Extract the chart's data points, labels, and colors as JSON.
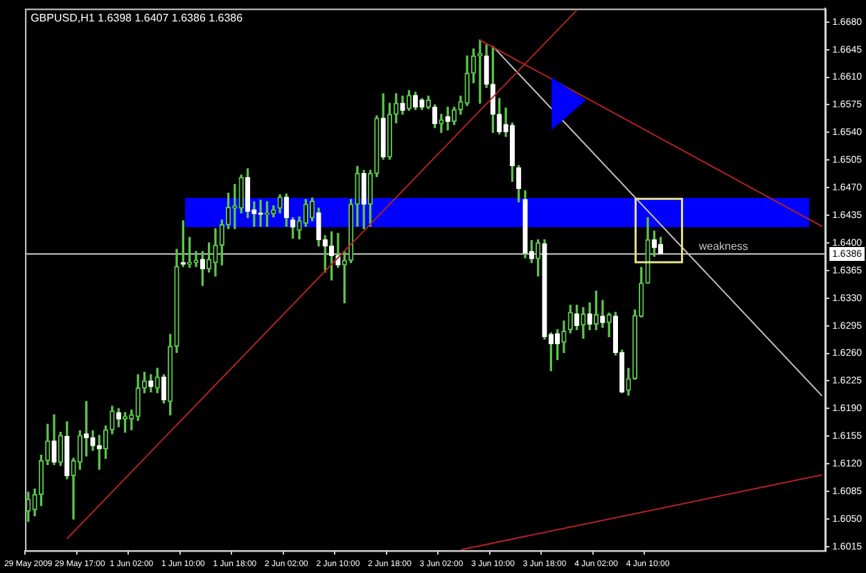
{
  "chart_data": {
    "type": "candlestick",
    "title": "GBPUSD,H1 1.6398 1.6407 1.6386 1.6386",
    "color": "#5cc44c",
    "colors": [
      "#5cc44c",
      "#5cc44c",
      "#5cc44c",
      "#5cc44c",
      "#ffffff",
      "#5cc44c",
      "#ffffff",
      "#5cc44c",
      "#5cc44c",
      "#ffffff",
      "#ffffff",
      "#ffffff",
      "#5cc44c",
      "#5cc44c",
      "#ffffff",
      "#5cc44c",
      "#5cc44c",
      "#5cc44c",
      "#5cc44c",
      "#ffffff",
      "#5cc44c",
      "#ffffff",
      "#5cc44c",
      "#5cc44c",
      "#ffffff",
      "#5cc44c",
      "#5cc44c",
      "#ffffff",
      "#5cc44c",
      "#5cc44c",
      "#5cc44c",
      "#5cc44c",
      "#5cc44c",
      "#5cc44c",
      "#ffffff",
      "#ffffff",
      "#ffffff",
      "#5cc44c",
      "#5cc44c",
      "#5cc44c",
      "#ffffff",
      "#ffffff",
      "#5cc44c",
      "#5cc44c",
      "#5cc44c",
      "#ffffff",
      "#ffffff",
      "#ffffff",
      "#ffffff",
      "#5cc44c",
      "#5cc44c",
      "#5cc44c",
      "#ffffff",
      "#5cc44c",
      "#5cc44c",
      "#ffffff",
      "#5cc44c",
      "#5cc44c",
      "#ffffff",
      "#5cc44c",
      "#ffffff",
      "#ffffff",
      "#5cc44c",
      "#ffffff",
      "#5cc44c",
      "#ffffff",
      "#5cc44c",
      "#5cc44c",
      "#5cc44c",
      "#5cc44c",
      "#5cc44c",
      "#ffffff",
      "#ffffff",
      "#ffffff",
      "#ffffff",
      "#ffffff",
      "#ffffff",
      "#ffffff",
      "#ffffff",
      "#5cc44c",
      "#ffffff",
      "#ffffff",
      "#ffffff",
      "#5cc44c",
      "#5cc44c",
      "#ffffff",
      "#5cc44c",
      "#ffffff",
      "#5cc44c",
      "#ffffff",
      "#5cc44c",
      "#ffffff",
      "#ffffff",
      "#5cc44c",
      "#5cc44c",
      "#5cc44c",
      "#5cc44c",
      "#ffffff",
      "#ffffff",
      null,
      null,
      null,
      null,
      null,
      null,
      null,
      null,
      null,
      null,
      null,
      null,
      null,
      null,
      null,
      null,
      null,
      null,
      null,
      null,
      null,
      null,
      null,
      null,
      null
    ],
    "categories": [
      "29 May 2009",
      null,
      null,
      null,
      null,
      null,
      null,
      null,
      "29 May 17:00",
      null,
      null,
      null,
      null,
      null,
      null,
      null,
      "1 Jun 02:00",
      null,
      null,
      null,
      null,
      null,
      null,
      null,
      "1 Jun 10:00",
      null,
      null,
      null,
      null,
      null,
      null,
      null,
      "1 Jun 18:00",
      null,
      null,
      null,
      null,
      null,
      null,
      null,
      "2 Jun 02:00",
      null,
      null,
      null,
      null,
      null,
      null,
      null,
      "2 Jun 10:00",
      null,
      null,
      null,
      null,
      null,
      null,
      null,
      "2 Jun 18:00",
      null,
      null,
      null,
      null,
      null,
      null,
      null,
      "3 Jun 02:00",
      null,
      null,
      null,
      null,
      null,
      null,
      null,
      "3 Jun 10:00",
      null,
      null,
      null,
      null,
      null,
      null,
      null,
      "3 Jun 18:00",
      null,
      null,
      null,
      null,
      null,
      null,
      null,
      "4 Jun 02:00",
      null,
      null,
      null,
      null,
      null,
      null,
      null,
      "4 Jun 10:00",
      null,
      null,
      null,
      null,
      null,
      null,
      null,
      null,
      null,
      null,
      null,
      null,
      null,
      null,
      null,
      null,
      null,
      null,
      null,
      null,
      null,
      null,
      null,
      null,
      null,
      null,
      null
    ],
    "ohlc": [
      [
        1.606,
        1.6084,
        1.6047,
        1.6075
      ],
      [
        1.6062,
        1.6088,
        1.6054,
        1.6081
      ],
      [
        1.6081,
        1.6131,
        1.6067,
        1.6124
      ],
      [
        1.6124,
        1.617,
        1.6119,
        1.6149
      ],
      [
        1.6149,
        1.6182,
        1.6119,
        1.6122
      ],
      [
        1.6122,
        1.616,
        1.6118,
        1.6156
      ],
      [
        1.6155,
        1.6173,
        1.6101,
        1.6105
      ],
      [
        1.6105,
        1.6127,
        1.605,
        1.6124
      ],
      [
        1.6122,
        1.6162,
        1.6113,
        1.6156
      ],
      [
        1.6158,
        1.6199,
        1.613,
        1.6153
      ],
      [
        1.6153,
        1.6162,
        1.6137,
        1.6143
      ],
      [
        1.6143,
        1.6156,
        1.6113,
        1.6139
      ],
      [
        1.6139,
        1.6168,
        1.6127,
        1.6163
      ],
      [
        1.6163,
        1.6193,
        1.6158,
        1.6187
      ],
      [
        1.6185,
        1.619,
        1.6167,
        1.6177
      ],
      [
        1.6177,
        1.6185,
        1.616,
        1.618
      ],
      [
        1.6177,
        1.6188,
        1.6163,
        1.6182
      ],
      [
        1.618,
        1.6233,
        1.6175,
        1.6216
      ],
      [
        1.6216,
        1.6236,
        1.621,
        1.6225
      ],
      [
        1.6225,
        1.6233,
        1.6211,
        1.6218
      ],
      [
        1.6216,
        1.6241,
        1.621,
        1.623
      ],
      [
        1.623,
        1.6233,
        1.6197,
        1.6201
      ],
      [
        1.6199,
        1.6284,
        1.6182,
        1.6269
      ],
      [
        1.6269,
        1.6392,
        1.6261,
        1.637
      ],
      [
        1.6374,
        1.6428,
        1.637,
        1.6373
      ],
      [
        1.6373,
        1.6407,
        1.6369,
        1.6375
      ],
      [
        1.6375,
        1.6389,
        1.637,
        1.6378
      ],
      [
        1.6379,
        1.6389,
        1.6346,
        1.6367
      ],
      [
        1.6367,
        1.64,
        1.6363,
        1.6379
      ],
      [
        1.6375,
        1.6418,
        1.6358,
        1.6397
      ],
      [
        1.6397,
        1.6429,
        1.6372,
        1.6423
      ],
      [
        1.6423,
        1.6463,
        1.6418,
        1.6445
      ],
      [
        1.6444,
        1.6474,
        1.6418,
        1.6447
      ],
      [
        1.6444,
        1.6486,
        1.6438,
        1.6483
      ],
      [
        1.6483,
        1.6494,
        1.6432,
        1.644
      ],
      [
        1.6442,
        1.6452,
        1.6421,
        1.6437
      ],
      [
        1.6437,
        1.6454,
        1.6421,
        1.6436
      ],
      [
        1.6436,
        1.6452,
        1.6421,
        1.6437
      ],
      [
        1.6437,
        1.6447,
        1.6433,
        1.6442
      ],
      [
        1.6444,
        1.6461,
        1.6438,
        1.6458
      ],
      [
        1.6458,
        1.6462,
        1.6421,
        1.6432
      ],
      [
        1.6429,
        1.6432,
        1.6406,
        1.642
      ],
      [
        1.6416,
        1.6433,
        1.6405,
        1.6428
      ],
      [
        1.6425,
        1.6455,
        1.6421,
        1.6449
      ],
      [
        1.6432,
        1.6457,
        1.6428,
        1.6453
      ],
      [
        1.6438,
        1.6444,
        1.6396,
        1.6404
      ],
      [
        1.6404,
        1.6409,
        1.6363,
        1.6396
      ],
      [
        1.6396,
        1.6414,
        1.6353,
        1.6384
      ],
      [
        1.6384,
        1.6412,
        1.6369,
        1.6372
      ],
      [
        1.6372,
        1.6389,
        1.6324,
        1.6378
      ],
      [
        1.6378,
        1.6455,
        1.6375,
        1.6449
      ],
      [
        1.6449,
        1.6497,
        1.6421,
        1.6488
      ],
      [
        1.6488,
        1.6492,
        1.6418,
        1.6449
      ],
      [
        1.6449,
        1.6492,
        1.6421,
        1.6488
      ],
      [
        1.6488,
        1.6561,
        1.6484,
        1.6558
      ],
      [
        1.6558,
        1.6589,
        1.6506,
        1.6509
      ],
      [
        1.6509,
        1.6577,
        1.6506,
        1.6563
      ],
      [
        1.6563,
        1.6589,
        1.6552,
        1.6577
      ],
      [
        1.6577,
        1.6586,
        1.6563,
        1.6568
      ],
      [
        1.657,
        1.6593,
        1.6568,
        1.6587
      ],
      [
        1.6587,
        1.6591,
        1.6569,
        1.6572
      ],
      [
        1.6581,
        1.6583,
        1.6569,
        1.6572
      ],
      [
        1.6572,
        1.6586,
        1.657,
        1.6581
      ],
      [
        1.6572,
        1.6575,
        1.6546,
        1.6551
      ],
      [
        1.6551,
        1.6563,
        1.654,
        1.6556
      ],
      [
        1.656,
        1.6572,
        1.6543,
        1.6554
      ],
      [
        1.6554,
        1.6572,
        1.655,
        1.6569
      ],
      [
        1.6569,
        1.6586,
        1.6563,
        1.6579
      ],
      [
        1.6577,
        1.6637,
        1.6574,
        1.6615
      ],
      [
        1.6615,
        1.6646,
        1.6603,
        1.6637
      ],
      [
        1.6637,
        1.6657,
        1.6577,
        1.664
      ],
      [
        1.6637,
        1.6651,
        1.6597,
        1.6601
      ],
      [
        1.6601,
        1.6649,
        1.654,
        1.6563
      ],
      [
        1.6563,
        1.6583,
        1.6538,
        1.6541
      ],
      [
        1.655,
        1.6571,
        1.6535,
        1.6541
      ],
      [
        1.6549,
        1.6552,
        1.6478,
        1.6498
      ],
      [
        1.6495,
        1.6498,
        1.6452,
        1.6469
      ],
      [
        1.6455,
        1.6466,
        1.6381,
        1.6387
      ],
      [
        1.6389,
        1.6403,
        1.6375,
        1.638
      ],
      [
        1.638,
        1.6404,
        1.6358,
        1.64
      ],
      [
        1.6399,
        1.6404,
        1.6278,
        1.6281
      ],
      [
        1.6284,
        1.6286,
        1.6238,
        1.6272
      ],
      [
        1.6285,
        1.629,
        1.6252,
        1.6272
      ],
      [
        1.6274,
        1.6301,
        1.6261,
        1.6288
      ],
      [
        1.629,
        1.6321,
        1.6286,
        1.6312
      ],
      [
        1.631,
        1.6321,
        1.629,
        1.6295
      ],
      [
        1.6296,
        1.6318,
        1.6279,
        1.631
      ],
      [
        1.631,
        1.6324,
        1.629,
        1.6297
      ],
      [
        1.6297,
        1.6339,
        1.629,
        1.6309
      ],
      [
        1.6307,
        1.6327,
        1.6293,
        1.6299
      ],
      [
        1.6299,
        1.6311,
        1.6281,
        1.6309
      ],
      [
        1.6307,
        1.6312,
        1.6258,
        1.6261
      ],
      [
        1.6261,
        1.6264,
        1.621,
        1.6211
      ],
      [
        1.6213,
        1.6241,
        1.6207,
        1.6228
      ],
      [
        1.6228,
        1.6315,
        1.6227,
        1.6308
      ],
      [
        1.6307,
        1.6369,
        1.6306,
        1.6349
      ],
      [
        1.6349,
        1.6432,
        1.6349,
        1.6404
      ],
      [
        1.6404,
        1.6415,
        1.6383,
        1.6394
      ],
      [
        1.6398,
        1.6407,
        1.6386,
        1.6386
      ],
      null,
      null,
      null,
      null,
      null,
      null,
      null,
      null,
      null,
      null,
      null,
      null,
      null,
      null,
      null,
      null,
      null,
      null,
      null,
      null,
      null,
      null,
      null,
      null,
      null
    ],
    "series": [
      {
        "type": "line",
        "color": "#b22222",
        "values": [
          null,
          null,
          null,
          null,
          null,
          null,
          1.6025,
          null,
          null,
          null,
          null,
          null,
          null,
          null,
          null,
          null,
          null,
          null,
          null,
          null,
          null,
          null,
          null,
          null,
          null,
          null,
          null,
          null,
          null,
          null,
          null,
          null,
          null,
          null,
          null,
          null,
          null,
          null,
          null,
          null,
          null,
          null,
          null,
          null,
          null,
          null,
          null,
          null,
          null,
          null,
          null,
          null,
          null,
          null,
          null,
          null,
          null,
          null,
          null,
          null,
          null,
          null,
          null,
          null,
          null,
          null,
          null,
          null,
          null,
          null,
          null,
          null,
          null,
          null,
          null,
          null,
          null,
          null,
          null,
          null,
          null,
          null,
          null,
          null,
          null,
          1.6695,
          null,
          null,
          null,
          null,
          null,
          null,
          null,
          null,
          null,
          null,
          null,
          null,
          null,
          null,
          null,
          null,
          null,
          null,
          null,
          null,
          null,
          null,
          null,
          null,
          null,
          null,
          null,
          null,
          null,
          null,
          null,
          null,
          null,
          null,
          null,
          null,
          null,
          null
        ]
      },
      {
        "type": "line",
        "color": "#b22222",
        "values": [
          null,
          null,
          null,
          null,
          null,
          null,
          null,
          null,
          null,
          null,
          null,
          null,
          null,
          null,
          null,
          null,
          null,
          null,
          null,
          null,
          null,
          null,
          null,
          null,
          null,
          null,
          null,
          null,
          null,
          null,
          null,
          null,
          null,
          null,
          null,
          null,
          null,
          null,
          null,
          null,
          null,
          null,
          null,
          null,
          null,
          null,
          null,
          null,
          null,
          null,
          null,
          null,
          null,
          null,
          null,
          null,
          null,
          null,
          null,
          null,
          null,
          null,
          null,
          null,
          null,
          null,
          null,
          null,
          null,
          null,
          1.6657,
          null,
          null,
          null,
          null,
          null,
          null,
          null,
          null,
          null,
          null,
          null,
          null,
          null,
          null,
          null,
          null,
          null,
          null,
          null,
          null,
          null,
          null,
          null,
          null,
          null,
          null,
          null,
          null,
          null,
          null,
          null,
          null,
          null,
          null,
          null,
          null,
          null,
          null,
          null,
          null,
          null,
          null,
          null,
          null,
          null,
          null,
          null,
          null,
          null,
          null,
          null,
          null,
          1.6421
        ]
      },
      {
        "type": "line",
        "color": "#c0c0c0",
        "values": [
          null,
          null,
          null,
          null,
          null,
          null,
          null,
          null,
          null,
          null,
          null,
          null,
          null,
          null,
          null,
          null,
          null,
          null,
          null,
          null,
          null,
          null,
          null,
          null,
          null,
          null,
          null,
          null,
          null,
          null,
          null,
          null,
          null,
          null,
          null,
          null,
          null,
          null,
          null,
          null,
          null,
          null,
          null,
          null,
          null,
          null,
          null,
          null,
          null,
          null,
          null,
          null,
          null,
          null,
          null,
          null,
          null,
          null,
          null,
          null,
          null,
          null,
          null,
          null,
          null,
          null,
          null,
          null,
          null,
          null,
          null,
          null,
          1.6649,
          null,
          null,
          null,
          null,
          null,
          null,
          null,
          null,
          null,
          null,
          null,
          null,
          null,
          null,
          null,
          null,
          null,
          null,
          null,
          null,
          null,
          null,
          null,
          null,
          null,
          null,
          null,
          null,
          null,
          null,
          null,
          null,
          null,
          null,
          null,
          null,
          null,
          null,
          null,
          null,
          null,
          null,
          null,
          null,
          null,
          null,
          null,
          null,
          null,
          null,
          1.6206
        ]
      },
      {
        "type": "line",
        "color": "#b22222",
        "values": [
          null,
          null,
          null,
          null,
          null,
          null,
          null,
          null,
          null,
          null,
          null,
          null,
          null,
          null,
          null,
          null,
          null,
          null,
          null,
          null,
          null,
          null,
          null,
          null,
          null,
          null,
          null,
          null,
          null,
          null,
          null,
          null,
          null,
          null,
          null,
          null,
          null,
          null,
          null,
          null,
          null,
          null,
          null,
          null,
          null,
          null,
          null,
          null,
          null,
          null,
          null,
          null,
          null,
          null,
          null,
          null,
          null,
          null,
          null,
          null,
          null,
          null,
          null,
          null,
          null,
          null,
          null,
          1.6011,
          null,
          null,
          null,
          null,
          null,
          null,
          null,
          null,
          null,
          null,
          null,
          null,
          null,
          null,
          null,
          null,
          null,
          null,
          null,
          null,
          null,
          null,
          null,
          null,
          null,
          null,
          null,
          null,
          null,
          null,
          null,
          null,
          null,
          null,
          null,
          null,
          null,
          null,
          null,
          null,
          null,
          null,
          null,
          null,
          null,
          null,
          null,
          null,
          null,
          null,
          null,
          null,
          null,
          null,
          null,
          1.6106
        ]
      }
    ],
    "ylim": [
      1.601,
      1.6697
    ],
    "yticks": [
      {
        "value": 1.668,
        "label": "1.6680"
      },
      {
        "value": 1.6645,
        "label": "1.6645"
      },
      {
        "value": 1.661,
        "label": "1.6610"
      },
      {
        "value": 1.6575,
        "label": "1.6575"
      },
      {
        "value": 1.654,
        "label": "1.6540"
      },
      {
        "value": 1.6505,
        "label": "1.6505"
      },
      {
        "value": 1.647,
        "label": "1.6470"
      },
      {
        "value": 1.6435,
        "label": "1.6435"
      },
      {
        "value": 1.64,
        "label": "1.6400"
      },
      {
        "value": 1.6365,
        "label": "1.6365"
      },
      {
        "value": 1.633,
        "label": "1.6330"
      },
      {
        "value": 1.6295,
        "label": "1.6295"
      },
      {
        "value": 1.626,
        "label": "1.6260"
      },
      {
        "value": 1.6225,
        "label": "1.6225"
      },
      {
        "value": 1.619,
        "label": "1.6190"
      },
      {
        "value": 1.6155,
        "label": "1.6155"
      },
      {
        "value": 1.612,
        "label": "1.6120"
      },
      {
        "value": 1.6085,
        "label": "1.6085"
      },
      {
        "value": 1.605,
        "label": "1.6050"
      },
      {
        "value": 1.6015,
        "label": "1.6015"
      }
    ],
    "bands": [
      {
        "axis": "y",
        "from": 1.642,
        "to": 1.6457,
        "color": "#0000ff"
      }
    ],
    "ref_lines": [
      {
        "axis": "y",
        "value": 1.6386,
        "label": "1.6386",
        "color": "#c0c0c0"
      }
    ],
    "annotations": [
      {
        "text": "weakness",
        "y": 1.6386
      }
    ]
  }
}
